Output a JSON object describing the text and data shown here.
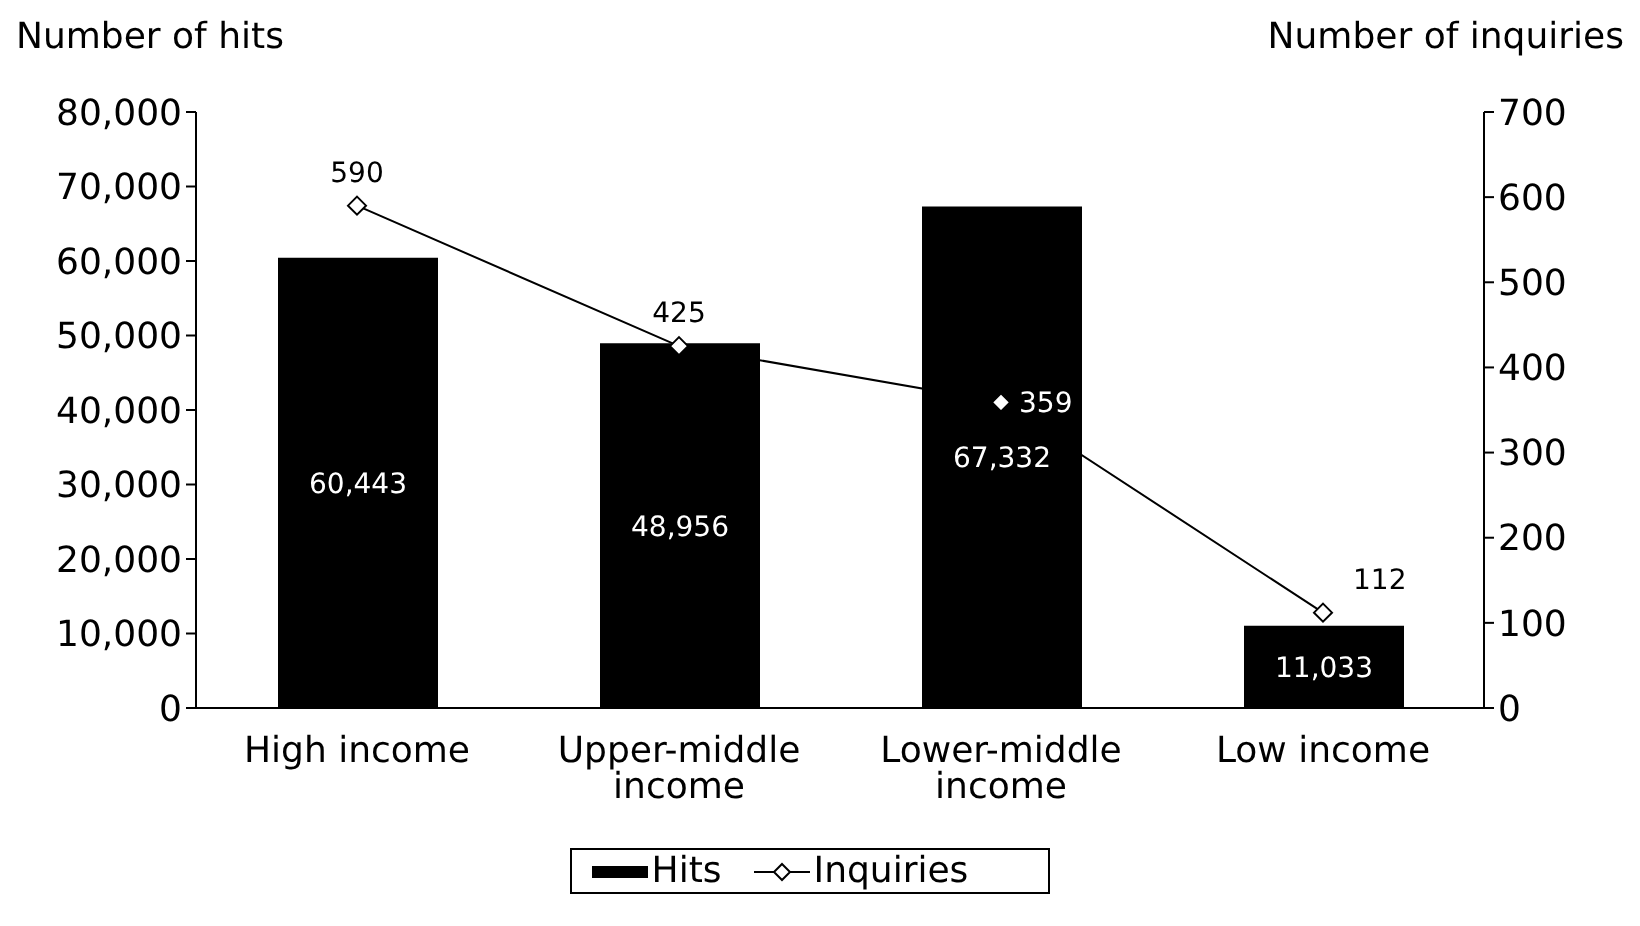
{
  "chart_data": {
    "type": "bar",
    "categories": [
      "High income",
      "Upper-middle income",
      "Lower-middle income",
      "Low income"
    ],
    "ylabel": "Number of hits",
    "y2label": "Number of inquiries",
    "series": [
      {
        "name": "Hits",
        "color": "#000000",
        "values": [
          60443,
          48956,
          67332,
          11033
        ],
        "value_labels": [
          "60,443",
          "48,956",
          "67,332",
          "11,033"
        ]
      },
      {
        "name": "Inquiries",
        "type": "line",
        "axis": "y2",
        "color": "#000000",
        "marker": "diamond",
        "values": [
          590,
          425,
          359,
          112
        ],
        "value_labels": [
          "590",
          "425",
          "359",
          "112"
        ]
      }
    ],
    "ylim": [
      0,
      80000
    ],
    "yticks": [
      0,
      {
        "value": 10000,
        "label": "10,000"
      },
      {
        "value": 20000,
        "label": "20,000"
      },
      {
        "value": 30000,
        "label": "30,000"
      },
      {
        "value": 40000,
        "label": "40,000"
      },
      {
        "value": 50000,
        "label": "50,000"
      },
      {
        "value": 60000,
        "label": "60,000"
      },
      {
        "value": 70000,
        "label": "70,000"
      },
      {
        "value": 80000,
        "label": "80,000"
      }
    ],
    "y2lim": [
      0,
      700
    ],
    "y2ticks": [
      0,
      100,
      200,
      300,
      400,
      500,
      600,
      700
    ],
    "legend": "bottom"
  }
}
